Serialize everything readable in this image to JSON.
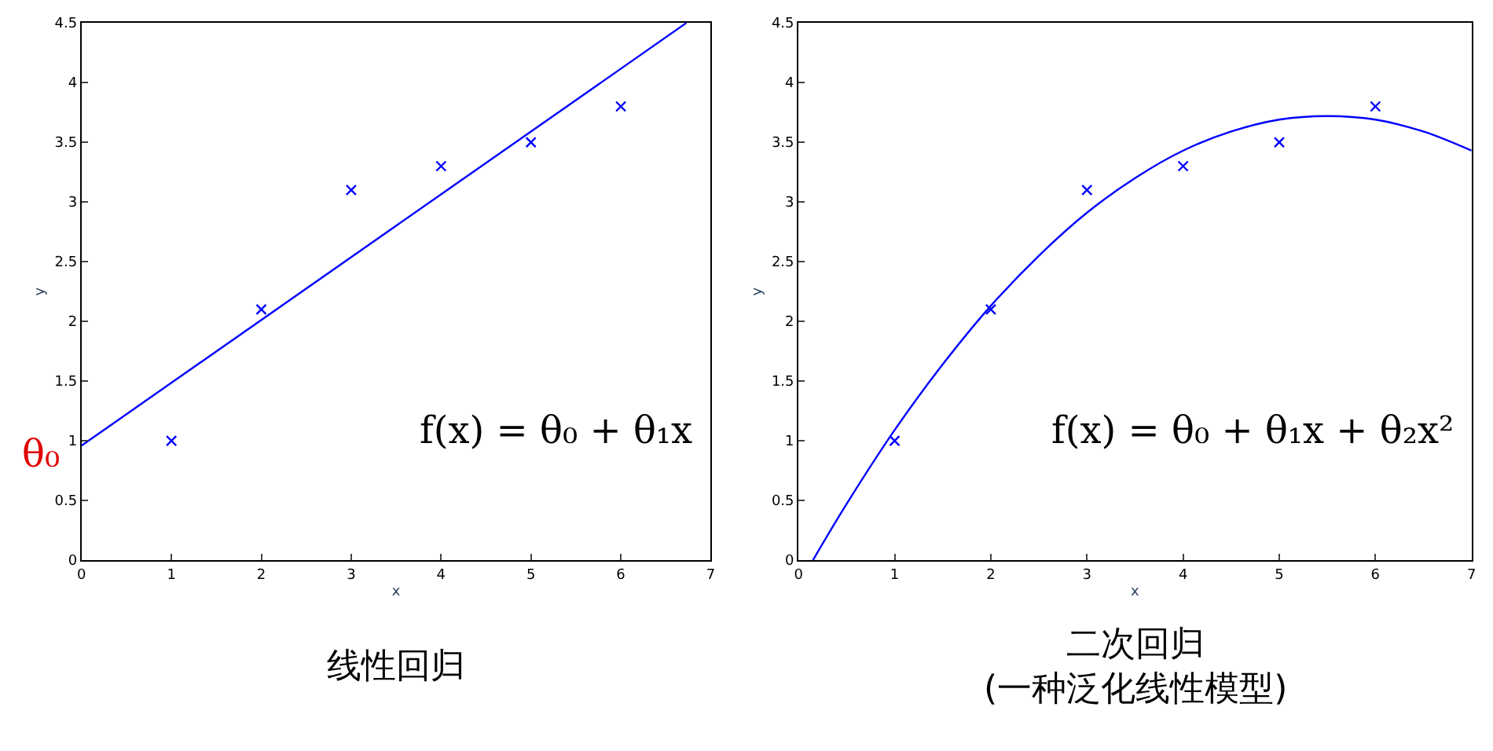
{
  "chart_data": [
    {
      "type": "scatter",
      "xlabel": "x",
      "ylabel": "y",
      "xlim": [
        0,
        7
      ],
      "xticks": [
        0,
        1,
        2,
        3,
        4,
        5,
        6,
        7
      ],
      "ylim": [
        0,
        4.5
      ],
      "yticks": [
        0,
        0.5,
        1,
        1.5,
        2,
        2.5,
        3,
        3.5,
        4,
        4.5
      ],
      "marker": "cross",
      "series": [
        {
          "color": "#0000ff",
          "x": [
            1,
            2,
            3,
            4,
            5,
            6
          ],
          "values": [
            1,
            2.1,
            3.1,
            3.3,
            3.5,
            3.8
          ]
        },
        {
          "type": "line",
          "color": "#0000ff",
          "marker": "none",
          "x": [
            0,
            6.73
          ],
          "values": [
            0.96,
            4.5
          ]
        }
      ],
      "annotations": [
        "f(x) = θ₀ + θ₁x",
        "线性回归",
        {
          "text": "θ₀",
          "x": 0,
          "y": 1
        }
      ]
    },
    {
      "type": "scatter",
      "xlabel": "x",
      "ylabel": "y",
      "xlim": [
        0,
        7
      ],
      "xticks": [
        0,
        1,
        2,
        3,
        4,
        5,
        6,
        7
      ],
      "ylim": [
        0,
        4.5
      ],
      "yticks": [
        0,
        0.5,
        1,
        1.5,
        2,
        2.5,
        3,
        3.5,
        4,
        4.5
      ],
      "marker": "cross",
      "series": [
        {
          "color": "#0000ff",
          "x": [
            1,
            2,
            3,
            4,
            5,
            6
          ],
          "values": [
            1,
            2.1,
            3.1,
            3.3,
            3.5,
            3.8
          ]
        },
        {
          "type": "line",
          "color": "#0000ff",
          "marker": "none",
          "x": [
            0.15,
            0.5,
            1,
            1.5,
            2,
            2.5,
            3,
            3.5,
            4,
            4.5,
            5,
            5.5,
            6,
            6.5,
            7
          ],
          "values": [
            0,
            0.47,
            1.09,
            1.64,
            2.13,
            2.55,
            2.91,
            3.2,
            3.43,
            3.59,
            3.69,
            3.72,
            3.69,
            3.59,
            3.43
          ]
        }
      ],
      "annotations": [
        "f(x) = θ₀ + θ₁x + θ₂x²",
        "二次回归\n(一种泛化线性模型)"
      ]
    }
  ]
}
